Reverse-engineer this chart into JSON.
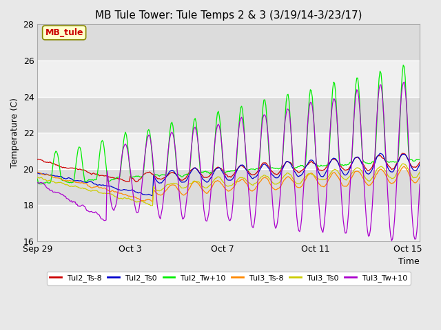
{
  "title": "MB Tule Tower: Tule Temps 2 & 3 (3/19/14-3/23/17)",
  "xlabel": "Time",
  "ylabel": "Temperature (C)",
  "ylim": [
    16,
    28
  ],
  "xlim": [
    0,
    16.5
  ],
  "yticks": [
    16,
    18,
    20,
    22,
    24,
    26,
    28
  ],
  "xtick_labels": [
    "Sep 29",
    "Oct 3",
    "Oct 7",
    "Oct 11",
    "Oct 15"
  ],
  "xtick_positions": [
    0,
    4,
    8,
    12,
    16
  ],
  "background_color": "#e8e8e8",
  "plot_bg_light": "#f0f0f0",
  "plot_bg_dark": "#dcdcdc",
  "legend_label": "MB_tule",
  "series_colors": {
    "Tul2_Ts-8": "#cc0000",
    "Tul2_Ts0": "#0000cc",
    "Tul2_Tw+10": "#00ee00",
    "Tul3_Ts-8": "#ff8800",
    "Tul3_Ts0": "#cccc00",
    "Tul3_Tw+10": "#aa00cc"
  },
  "grid_color": "#ffffff",
  "title_fontsize": 11,
  "axis_fontsize": 9,
  "tick_fontsize": 9
}
